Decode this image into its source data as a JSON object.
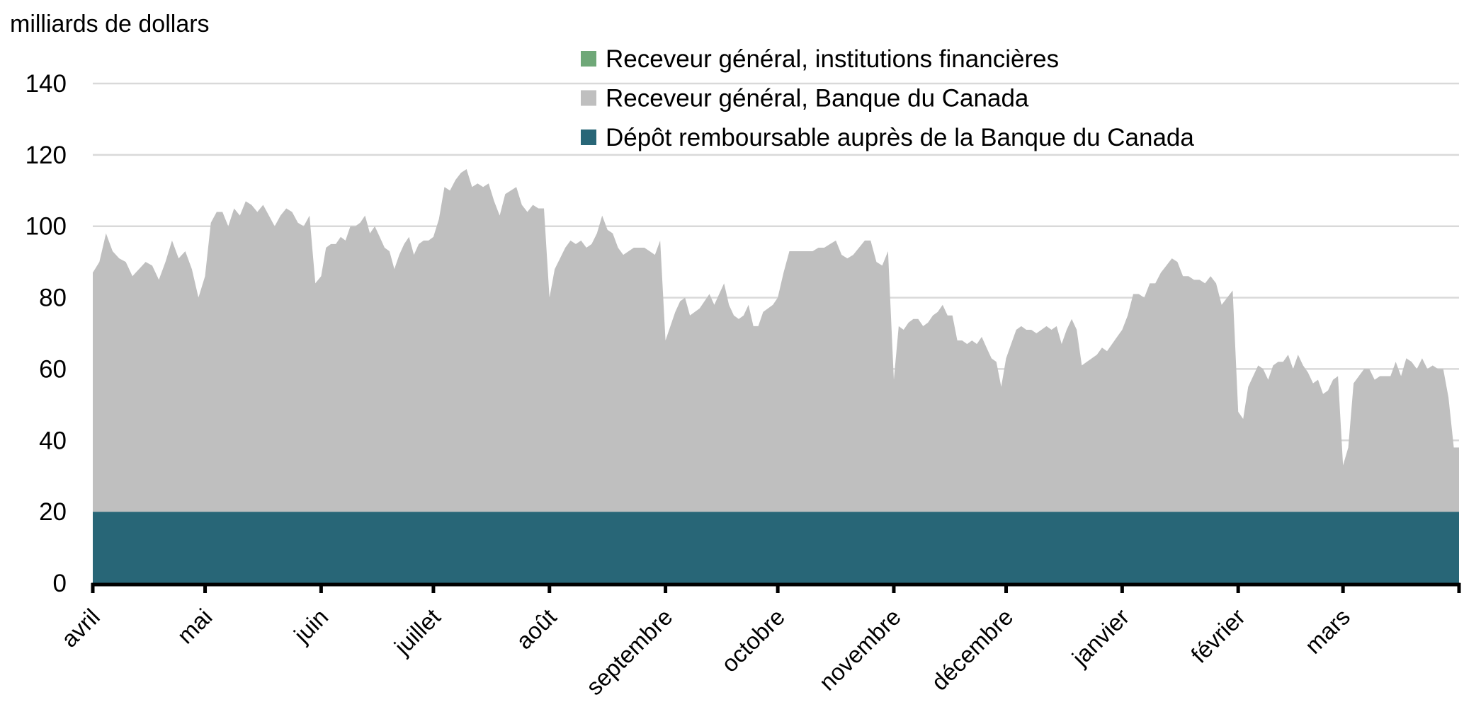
{
  "chart_data": {
    "type": "area",
    "stacked": true,
    "ylabel": "milliards de dollars",
    "ylim": [
      0,
      140
    ],
    "yticks": [
      0,
      20,
      40,
      60,
      80,
      100,
      120,
      140
    ],
    "grid": true,
    "legend_position": "top-right",
    "categories": [
      "avril",
      "mai",
      "juin",
      "juillet",
      "août",
      "septembre",
      "octobre",
      "novembre",
      "décembre",
      "janvier",
      "février",
      "mars"
    ],
    "month_days": [
      30,
      31,
      30,
      31,
      31,
      30,
      31,
      30,
      31,
      31,
      28,
      31
    ],
    "series": [
      {
        "name": "Dépôt remboursable auprès de la Banque du Canada",
        "color": "#286677",
        "values_by_month": [
          [
            20
          ],
          [
            20
          ],
          [
            20
          ],
          [
            20
          ],
          [
            20
          ],
          [
            20
          ],
          [
            20
          ],
          [
            20
          ],
          [
            20
          ],
          [
            20
          ],
          [
            20
          ],
          [
            20
          ]
        ]
      },
      {
        "name": "Receveur général, institutions financières",
        "color": "#6fa878",
        "values_by_month": [
          [
            0
          ],
          [
            0
          ],
          [
            0
          ],
          [
            0
          ],
          [
            0
          ],
          [
            0
          ],
          [
            0
          ],
          [
            0
          ],
          [
            0
          ],
          [
            0
          ],
          [
            0
          ],
          [
            0
          ]
        ]
      },
      {
        "name": "Receveur général, Banque du Canada",
        "color": "#bfbfbf",
        "values_by_month": [
          [
            67,
            70,
            78,
            73,
            71,
            70,
            66,
            68,
            70,
            69,
            65,
            70,
            76,
            71,
            73,
            68,
            60
          ],
          [
            66,
            81,
            84,
            84,
            80,
            85,
            83,
            87,
            86,
            84,
            86,
            83,
            80,
            83,
            85,
            84,
            81,
            80,
            83,
            64
          ],
          [
            66,
            74,
            75,
            75,
            77,
            76,
            80,
            80,
            81,
            83,
            78,
            80,
            77,
            74,
            73,
            68,
            72,
            75,
            77,
            72,
            75,
            76,
            76
          ],
          [
            77,
            82,
            91,
            90,
            93,
            95,
            96,
            91,
            92,
            91,
            92,
            87,
            83,
            89,
            90,
            91,
            86,
            84,
            86,
            85,
            85
          ],
          [
            60,
            68,
            71,
            74,
            76,
            75,
            76,
            74,
            75,
            78,
            83,
            79,
            78,
            74,
            72,
            73,
            74,
            74,
            74,
            73,
            72,
            76
          ],
          [
            48,
            52,
            56,
            59,
            60,
            55,
            56,
            57,
            59,
            61,
            58,
            61,
            64,
            58,
            55,
            54,
            55,
            58,
            52,
            52,
            56,
            57,
            58
          ],
          [
            60,
            67,
            73,
            73,
            73,
            73,
            73,
            74,
            74,
            75,
            76,
            72,
            71,
            72,
            74,
            76,
            76,
            70,
            69,
            73
          ],
          [
            37,
            52,
            51,
            53,
            54,
            54,
            52,
            53,
            55,
            56,
            58,
            55,
            55,
            48,
            48,
            47,
            48,
            47,
            49,
            46,
            43,
            42,
            35
          ],
          [
            43,
            47,
            51,
            52,
            51,
            51,
            50,
            51,
            52,
            51,
            52,
            47,
            51,
            54,
            51,
            41,
            42,
            43,
            44,
            46,
            45,
            47,
            49
          ],
          [
            51,
            55,
            61,
            61,
            60,
            64,
            64,
            67,
            69,
            71,
            70,
            66,
            66,
            65,
            65,
            64,
            66,
            64,
            58,
            60,
            62
          ],
          [
            28,
            26,
            35,
            38,
            41,
            40,
            37,
            41,
            42,
            42,
            44,
            40,
            44,
            41,
            39,
            36,
            37,
            33,
            34,
            37,
            38
          ],
          [
            13,
            18,
            36,
            38,
            40,
            40,
            37,
            38,
            38,
            38,
            42,
            38,
            43,
            42,
            40,
            43,
            40,
            41,
            40,
            40,
            32,
            18
          ]
        ]
      }
    ],
    "legend_order": [
      1,
      2,
      0
    ],
    "gridline_color": "#d9d9d9"
  }
}
